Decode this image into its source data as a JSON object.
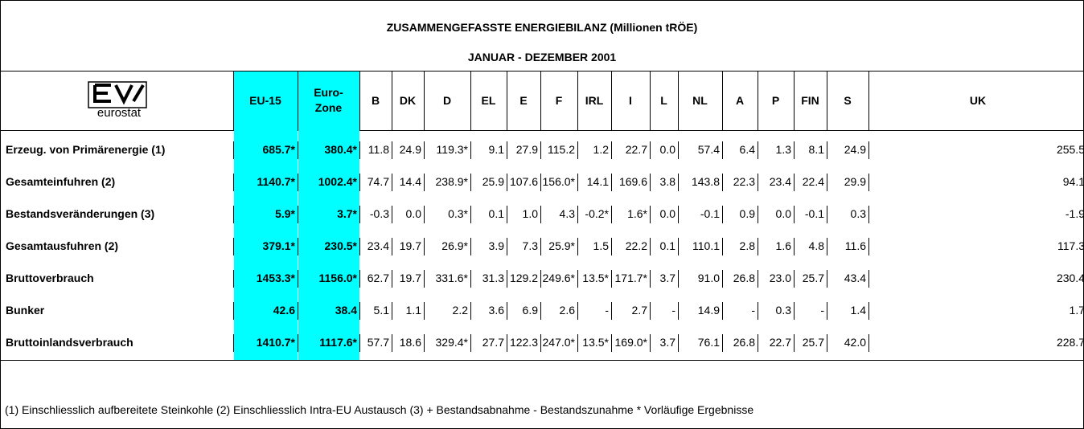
{
  "header": {
    "title": "ZUSAMMENGEFASSTE ENERGIEBILANZ (Millionen tRÖE)",
    "subtitle": "JANUAR - DEZEMBER 2001",
    "logo": "eurostat"
  },
  "table": {
    "columns": [
      "EU-15",
      "Euro-\nZone",
      "B",
      "DK",
      "D",
      "EL",
      "E",
      "F",
      "IRL",
      "I",
      "L",
      "NL",
      "A",
      "P",
      "FIN",
      "S",
      "UK"
    ],
    "rows": [
      [
        "Erzeug. von Primärenergie (1)",
        "685.7*",
        "380.4*",
        "11.8",
        "24.9",
        "119.3*",
        "9.1",
        "27.9",
        "115.2",
        "1.2",
        "22.7",
        "0.0",
        "57.4",
        "6.4",
        "1.3",
        "8.1",
        "24.9",
        "255.5"
      ],
      [
        "Gesamteinfuhren (2)",
        "1140.7*",
        "1002.4*",
        "74.7",
        "14.4",
        "238.9*",
        "25.9",
        "107.6",
        "156.0*",
        "14.1",
        "169.6",
        "3.8",
        "143.8",
        "22.3",
        "23.4",
        "22.4",
        "29.9",
        "94.1"
      ],
      [
        "Bestandsveränderungen (3)",
        "5.9*",
        "3.7*",
        "-0.3",
        "0.0",
        "0.3*",
        "0.1",
        "1.0",
        "4.3",
        "-0.2*",
        "1.6*",
        "0.0",
        "-0.1",
        "0.9",
        "0.0",
        "-0.1",
        "0.3",
        "-1.9"
      ],
      [
        "Gesamtausfuhren (2)",
        "379.1*",
        "230.5*",
        "23.4",
        "19.7",
        "26.9*",
        "3.9",
        "7.3",
        "25.9*",
        "1.5",
        "22.2",
        "0.1",
        "110.1",
        "2.8",
        "1.6",
        "4.8",
        "11.6",
        "117.3"
      ],
      [
        "Bruttoverbrauch",
        "1453.3*",
        "1156.0*",
        "62.7",
        "19.7",
        "331.6*",
        "31.3",
        "129.2",
        "249.6*",
        "13.5*",
        "171.7*",
        "3.7",
        "91.0",
        "26.8",
        "23.0",
        "25.7",
        "43.4",
        "230.4"
      ],
      [
        "Bunker",
        "42.6",
        "38.4",
        "5.1",
        "1.1",
        "2.2",
        "3.6",
        "6.9",
        "2.6",
        "-",
        "2.7",
        "-",
        "14.9",
        "-",
        "0.3",
        "-",
        "1.4",
        "1.7"
      ],
      [
        "Bruttoinlandsverbrauch",
        "1410.7*",
        "1117.6*",
        "57.7",
        "18.6",
        "329.4*",
        "27.7",
        "122.3",
        "247.0*",
        "13.5*",
        "169.0*",
        "3.7",
        "76.1",
        "26.8",
        "22.7",
        "25.7",
        "42.0",
        "228.7"
      ]
    ]
  },
  "footnote": "(1) Einschliesslich aufbereitete Steinkohle (2) Einschliesslich Intra-EU Austausch (3) + Bestandsabnahme  - Bestandszunahme * Vorläufige Ergebnisse"
}
